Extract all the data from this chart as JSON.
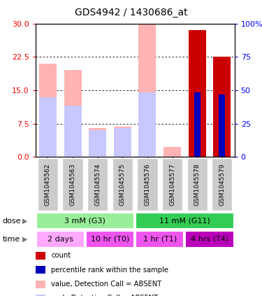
{
  "title": "GDS4942 / 1430686_at",
  "samples": [
    "GSM1045562",
    "GSM1045563",
    "GSM1045574",
    "GSM1045575",
    "GSM1045576",
    "GSM1045577",
    "GSM1045578",
    "GSM1045579"
  ],
  "pink_bar_heights": [
    21.0,
    19.5,
    6.5,
    6.8,
    30.0,
    2.2,
    0.0,
    0.0
  ],
  "lightblue_bar_heights": [
    13.5,
    11.5,
    6.0,
    6.5,
    14.5,
    0.0,
    0.0,
    0.0
  ],
  "red_bar_heights": [
    0.0,
    0.0,
    0.0,
    0.0,
    0.0,
    0.0,
    28.5,
    22.5
  ],
  "blue_bar_heights": [
    0.0,
    0.0,
    0.0,
    0.0,
    0.0,
    0.0,
    14.5,
    14.0
  ],
  "ylim_left": [
    0,
    30
  ],
  "ylim_right": [
    0,
    100
  ],
  "yticks_left": [
    0,
    7.5,
    15,
    22.5,
    30
  ],
  "yticks_right": [
    0,
    25,
    50,
    75,
    100
  ],
  "dose_groups": [
    {
      "label": "3 mM (G3)",
      "start": 0,
      "end": 4,
      "color": "#99EE99"
    },
    {
      "label": "11 mM (G11)",
      "start": 4,
      "end": 8,
      "color": "#33CC55"
    }
  ],
  "time_groups": [
    {
      "label": "2 days",
      "start": 0,
      "end": 2,
      "color": "#FFAAFF"
    },
    {
      "label": "10 hr (T0)",
      "start": 2,
      "end": 4,
      "color": "#EE55EE"
    },
    {
      "label": "1 hr (T1)",
      "start": 4,
      "end": 6,
      "color": "#EE55EE"
    },
    {
      "label": "4 hrs (T4)",
      "start": 6,
      "end": 8,
      "color": "#BB00BB"
    }
  ],
  "legend_items": [
    {
      "color": "#CC0000",
      "label": "count"
    },
    {
      "color": "#0000BB",
      "label": "percentile rank within the sample"
    },
    {
      "color": "#FFB3B3",
      "label": "value, Detection Call = ABSENT"
    },
    {
      "color": "#C8C8FF",
      "label": "rank, Detection Call = ABSENT"
    }
  ],
  "pink_color": "#FFB3B3",
  "lightblue_color": "#C8C8FF",
  "red_color": "#CC0000",
  "blue_color": "#0000BB",
  "bar_width": 0.7,
  "blue_bar_width": 0.25,
  "sample_box_color": "#CCCCCC",
  "grid_color": "black",
  "left_tick_color": "red",
  "right_tick_color": "blue"
}
